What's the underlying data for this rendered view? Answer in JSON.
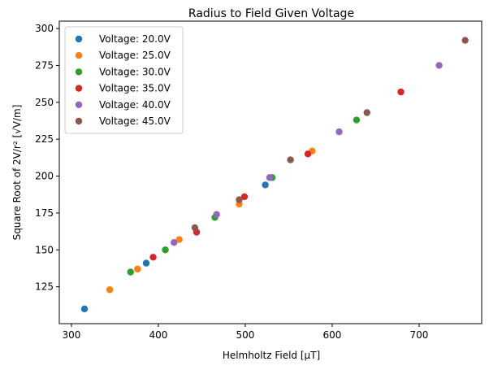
{
  "chart_data": {
    "type": "scatter",
    "title": "Radius to Field Given Voltage",
    "xlabel": "Helmholtz Field [μT]",
    "ylabel": "Square Root of 2V/r² [√V/m]",
    "xlim": [
      286,
      772
    ],
    "ylim": [
      100,
      305
    ],
    "xticks": [
      300,
      400,
      500,
      600,
      700
    ],
    "yticks": [
      125,
      150,
      175,
      200,
      225,
      250,
      275,
      300
    ],
    "grid": false,
    "legend_position": "top-left",
    "series": [
      {
        "name": "Voltage: 20.0V",
        "color": "#1f77b4",
        "points": [
          [
            315,
            110
          ],
          [
            386,
            141
          ],
          [
            523,
            194
          ]
        ]
      },
      {
        "name": "Voltage: 25.0V",
        "color": "#ff7f0e",
        "points": [
          [
            344,
            123
          ],
          [
            376,
            137
          ],
          [
            424,
            157
          ],
          [
            493,
            181
          ],
          [
            577,
            217
          ]
        ]
      },
      {
        "name": "Voltage: 30.0V",
        "color": "#2ca02c",
        "points": [
          [
            368,
            135
          ],
          [
            408,
            150
          ],
          [
            465,
            172
          ],
          [
            531,
            199
          ],
          [
            628,
            238
          ]
        ]
      },
      {
        "name": "Voltage: 35.0V",
        "color": "#d62728",
        "points": [
          [
            394,
            145
          ],
          [
            444,
            162
          ],
          [
            499,
            186
          ],
          [
            572,
            215
          ],
          [
            679,
            257
          ]
        ]
      },
      {
        "name": "Voltage: 40.0V",
        "color": "#9467bd",
        "points": [
          [
            418,
            155
          ],
          [
            467,
            174
          ],
          [
            528,
            199
          ],
          [
            608,
            230
          ],
          [
            723,
            275
          ]
        ]
      },
      {
        "name": "Voltage: 45.0V",
        "color": "#8c564b",
        "points": [
          [
            442,
            165
          ],
          [
            493,
            184
          ],
          [
            552,
            211
          ],
          [
            640,
            243
          ],
          [
            753,
            292
          ]
        ]
      }
    ]
  }
}
